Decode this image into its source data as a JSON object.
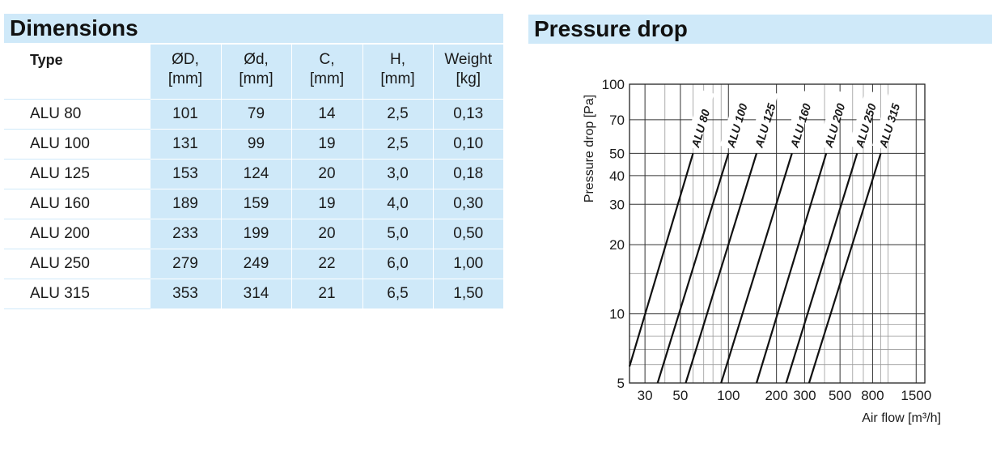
{
  "dimensions": {
    "title": "Dimensions",
    "headers": [
      {
        "line1": "Type",
        "line2": ""
      },
      {
        "line1": "ØD,",
        "line2": "[mm]"
      },
      {
        "line1": "Ød,",
        "line2": "[mm]"
      },
      {
        "line1": "C,",
        "line2": "[mm]"
      },
      {
        "line1": "H,",
        "line2": "[mm]"
      },
      {
        "line1": "Weight",
        "line2": "[kg]"
      }
    ],
    "rows": [
      [
        "ALU 80",
        "101",
        "79",
        "14",
        "2,5",
        "0,13"
      ],
      [
        "ALU 100",
        "131",
        "99",
        "19",
        "2,5",
        "0,10"
      ],
      [
        "ALU 125",
        "153",
        "124",
        "20",
        "3,0",
        "0,18"
      ],
      [
        "ALU 160",
        "189",
        "159",
        "19",
        "4,0",
        "0,30"
      ],
      [
        "ALU 200",
        "233",
        "199",
        "20",
        "5,0",
        "0,50"
      ],
      [
        "ALU 250",
        "279",
        "249",
        "22",
        "6,0",
        "1,00"
      ],
      [
        "ALU 315",
        "353",
        "314",
        "21",
        "6,5",
        "1,50"
      ]
    ]
  },
  "pressure_drop": {
    "title": "Pressure drop"
  },
  "chart_data": {
    "type": "line",
    "xscale": "log",
    "yscale": "log",
    "xlim": [
      24,
      1700
    ],
    "ylim": [
      5,
      100
    ],
    "grid": true,
    "xlabel": "Air flow [m³/h]",
    "ylabel": "Pressure drop  [Pa]",
    "xticks": [
      30,
      50,
      100,
      200,
      300,
      500,
      800,
      1500
    ],
    "xtick_labels": [
      "30",
      "50",
      "100",
      "200",
      "300",
      "500",
      "800",
      "1500"
    ],
    "yticks": [
      5,
      10,
      20,
      30,
      40,
      50,
      70,
      100
    ],
    "ytick_labels": [
      "5",
      "10",
      "20",
      "30",
      "40",
      "50",
      "70",
      "100"
    ],
    "x_minor_gridlines": [
      40,
      60,
      70,
      80,
      90,
      400,
      600,
      700,
      900,
      1000
    ],
    "y_minor_gridlines": [
      6,
      7,
      8,
      9,
      15
    ],
    "series": [
      {
        "name": "ALU 80",
        "x": [
          24,
          60
        ],
        "y": [
          5.9,
          50
        ]
      },
      {
        "name": "ALU 100",
        "x": [
          36,
          100
        ],
        "y": [
          5,
          50
        ]
      },
      {
        "name": "ALU 125",
        "x": [
          54,
          150
        ],
        "y": [
          5,
          50
        ]
      },
      {
        "name": "ALU 160",
        "x": [
          90,
          250
        ],
        "y": [
          5,
          50
        ]
      },
      {
        "name": "ALU 200",
        "x": [
          150,
          410
        ],
        "y": [
          5,
          50
        ]
      },
      {
        "name": "ALU 250",
        "x": [
          230,
          640
        ],
        "y": [
          5,
          50
        ]
      },
      {
        "name": "ALU 315",
        "x": [
          320,
          900
        ],
        "y": [
          5,
          50
        ]
      }
    ]
  }
}
